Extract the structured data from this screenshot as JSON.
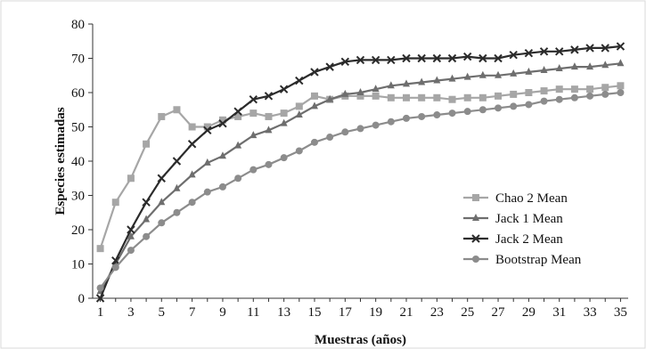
{
  "chart_data": {
    "type": "line",
    "title": "",
    "xlabel": "Muestras (años)",
    "ylabel": "Especies estimadas",
    "xlim": [
      1,
      35
    ],
    "ylim": [
      0,
      80
    ],
    "y_ticks": [
      0,
      10,
      20,
      30,
      40,
      50,
      60,
      70,
      80
    ],
    "x_ticks": [
      1,
      3,
      5,
      7,
      9,
      11,
      13,
      15,
      17,
      19,
      21,
      23,
      25,
      27,
      29,
      31,
      33,
      35
    ],
    "grid": false,
    "legend_position": "right",
    "x": [
      1,
      2,
      3,
      4,
      5,
      6,
      7,
      8,
      9,
      10,
      11,
      12,
      13,
      14,
      15,
      16,
      17,
      18,
      19,
      20,
      21,
      22,
      23,
      24,
      25,
      26,
      27,
      28,
      29,
      30,
      31,
      32,
      33,
      34,
      35
    ],
    "series": [
      {
        "name": "Chao 2 Mean",
        "color": "#a6a6a6",
        "marker": "square",
        "values": [
          14.5,
          28,
          35,
          45,
          53,
          55,
          50,
          50,
          52,
          53,
          54,
          53,
          54,
          56,
          59,
          58,
          59,
          59,
          59,
          58.5,
          58.5,
          58.5,
          58.5,
          58,
          58.5,
          58.5,
          59,
          59.5,
          60,
          60.5,
          61,
          61,
          61,
          61.5,
          62
        ]
      },
      {
        "name": "Jack 1 Mean",
        "color": "#6e6e6e",
        "marker": "triangle",
        "values": [
          2,
          10,
          18,
          23,
          28,
          32,
          36,
          39.5,
          41.5,
          44.5,
          47.5,
          49,
          51,
          53.5,
          56,
          58,
          59.5,
          60,
          61,
          62,
          62.5,
          63,
          63.5,
          64,
          64.5,
          65,
          65,
          65.5,
          66,
          66.5,
          67,
          67.5,
          67.5,
          68,
          68.5
        ]
      },
      {
        "name": "Jack 2 Mean",
        "color": "#2b2b2b",
        "marker": "x",
        "values": [
          0,
          11,
          20,
          28,
          35,
          40,
          45,
          49,
          51,
          54.5,
          58,
          59,
          61,
          63.5,
          66,
          67.5,
          69,
          69.5,
          69.5,
          69.5,
          70,
          70,
          70,
          70,
          70.5,
          70,
          70,
          71,
          71.5,
          72,
          72,
          72.5,
          73,
          73,
          73.5
        ]
      },
      {
        "name": "Bootstrap Mean",
        "color": "#8c8c8c",
        "marker": "circle",
        "values": [
          3,
          9,
          14,
          18,
          22,
          25,
          28,
          31,
          32.5,
          35,
          37.5,
          39,
          41,
          43,
          45.5,
          47,
          48.5,
          49.5,
          50.5,
          51.5,
          52.5,
          53,
          53.5,
          54,
          54.5,
          55,
          55.5,
          56,
          56.5,
          57.5,
          58,
          58.5,
          59,
          59.5,
          60
        ]
      }
    ]
  }
}
